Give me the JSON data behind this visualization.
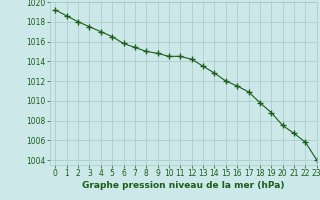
{
  "y_values": [
    1019.2,
    1018.6,
    1018.0,
    1017.5,
    1017.0,
    1016.5,
    1015.8,
    1015.4,
    1015.0,
    1014.8,
    1014.5,
    1014.5,
    1014.2,
    1013.5,
    1012.8,
    1012.0,
    1011.5,
    1010.9,
    1009.8,
    1008.8,
    1007.5,
    1006.7,
    1005.8,
    1004.0
  ],
  "xlabel": "Graphe pression niveau de la mer (hPa)",
  "xlim": [
    -0.5,
    23
  ],
  "ylim": [
    1003.5,
    1020.0
  ],
  "yticks": [
    1004,
    1006,
    1008,
    1010,
    1012,
    1014,
    1016,
    1018,
    1020
  ],
  "xticks": [
    0,
    1,
    2,
    3,
    4,
    5,
    6,
    7,
    8,
    9,
    10,
    11,
    12,
    13,
    14,
    15,
    16,
    17,
    18,
    19,
    20,
    21,
    22,
    23
  ],
  "line_color": "#1a5e1a",
  "marker": "+",
  "bg_color": "#cce8e8",
  "grid_color": "#a8c8c8",
  "label_color": "#1a5e1a",
  "tick_label_color": "#1a5e1a",
  "tick_fontsize": 5.5,
  "xlabel_fontsize": 6.5
}
